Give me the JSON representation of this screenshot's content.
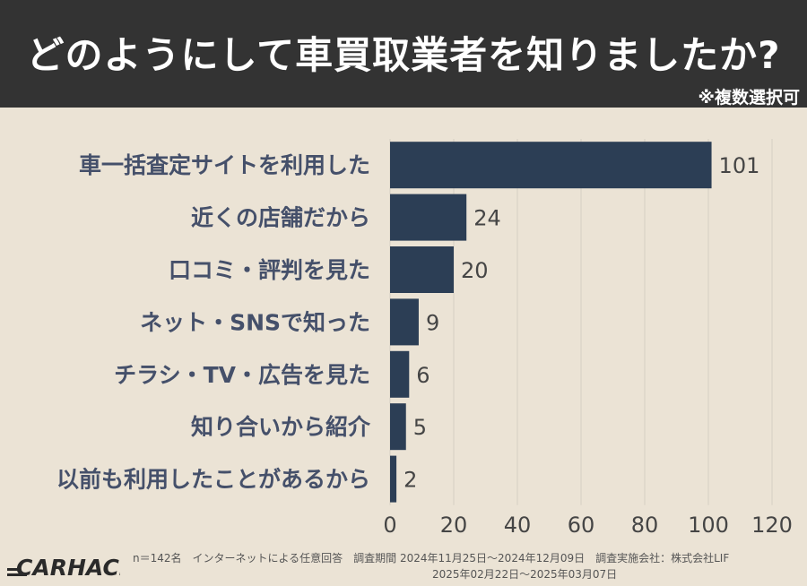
{
  "header": {
    "title": "どのようにして車買取業者を知りましたか?",
    "note": "※複数選択可"
  },
  "chart_data": {
    "type": "bar",
    "orientation": "horizontal",
    "categories": [
      "車一括査定サイトを利用した",
      "近くの店舗だから",
      "口コミ・評判を見た",
      "ネット・SNSで知った",
      "チラシ・TV・広告を見た",
      "知り合いから紹介",
      "以前も利用したことがあるから"
    ],
    "values": [
      101,
      24,
      20,
      9,
      6,
      5,
      2
    ],
    "xlim": [
      0,
      120
    ],
    "xticks": [
      0,
      20,
      40,
      60,
      80,
      100,
      120
    ],
    "grid": true,
    "bar_color": "#2c3e55"
  },
  "footer": {
    "logo_text": "CARHACK",
    "line1": "n＝142名　インターネットによる任意回答　調査期間 2024年11月25日〜2024年12月09日　調査実施会社：株式会社LIF",
    "line2": "2025年02月22日〜2025年03月07日"
  }
}
